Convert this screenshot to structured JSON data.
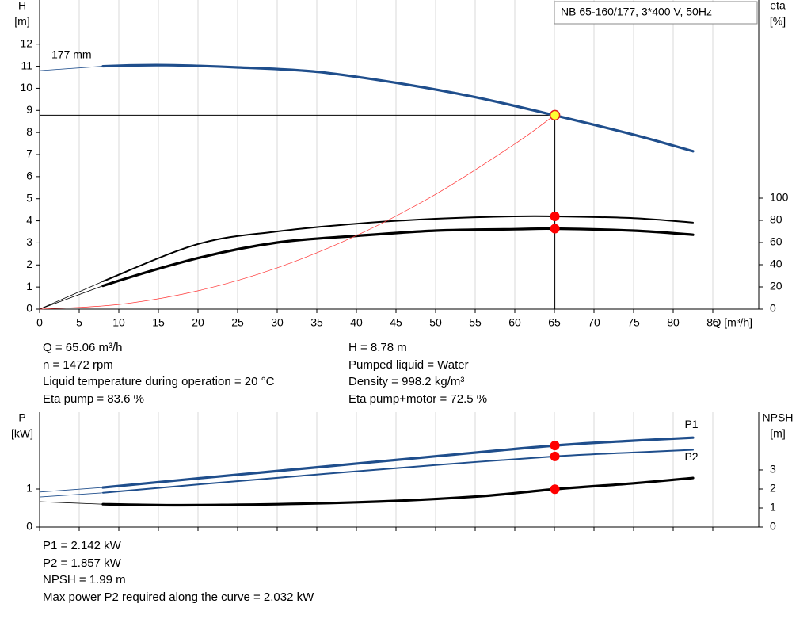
{
  "chart_data": [
    {
      "type": "line",
      "title": "NB 65-160/177, 3*400 V, 50Hz",
      "ylabel": "H",
      "yunit": "[m]",
      "y2label": "eta",
      "y2unit": "[%]",
      "xlabel": "Q [m³/h]",
      "annotation": "177 mm",
      "xlim": [
        0,
        90.8
      ],
      "xticks": [
        0,
        5,
        10,
        15,
        20,
        25,
        30,
        35,
        40,
        45,
        50,
        55,
        60,
        65,
        70,
        75,
        80,
        85
      ],
      "xtick_labels": true,
      "ylim": [
        0,
        14
      ],
      "yticks": [
        0,
        1,
        2,
        3,
        4,
        5,
        6,
        7,
        8,
        9,
        10,
        11,
        12
      ],
      "y2lim": [
        0,
        278.6
      ],
      "y2ticks": [
        0,
        20,
        40,
        60,
        80,
        100
      ],
      "grid": true,
      "series": [
        {
          "color": "#1f4e8c",
          "style": "thick",
          "x": [
            0,
            8,
            16,
            25,
            35,
            45,
            55,
            65,
            75,
            82.5
          ],
          "values": [
            10.8,
            11.0,
            11.05,
            10.95,
            10.75,
            10.25,
            9.6,
            8.78,
            7.9,
            7.15
          ]
        },
        {
          "color": "#000000",
          "style": "medium",
          "axis": "y2",
          "x": [
            0,
            8,
            20,
            30,
            40,
            50,
            60,
            65,
            75,
            82.5
          ],
          "values": [
            0,
            25,
            58.6,
            70,
            77,
            81.4,
            83.6,
            83.6,
            82,
            78
          ]
        },
        {
          "color": "#000000",
          "style": "thick",
          "axis": "y2",
          "x": [
            0,
            8,
            20,
            30,
            40,
            50,
            60,
            65,
            75,
            82.5
          ],
          "values": [
            0,
            21,
            46,
            60,
            66,
            70.7,
            72,
            72.5,
            70.7,
            67
          ]
        },
        {
          "color": "#ff3333",
          "style": "hair",
          "x": [
            0,
            10,
            20,
            30,
            40,
            50,
            60,
            65
          ],
          "values": [
            0,
            0.21,
            0.83,
            1.87,
            3.33,
            5.2,
            7.48,
            8.78
          ]
        }
      ],
      "points": [
        {
          "x": 65.06,
          "y": 8.78,
          "color": "#ffff33",
          "crosshair": true
        },
        {
          "x": 65.06,
          "y": 83.6,
          "axis": "y2",
          "color": "#ff0000"
        },
        {
          "x": 65.06,
          "y": 72.5,
          "axis": "y2",
          "color": "#ff0000"
        }
      ]
    },
    {
      "type": "line",
      "ylabel": "P",
      "yunit": "[kW]",
      "y2label": "NPSH",
      "y2unit": "[m]",
      "xlim": [
        0,
        90.8
      ],
      "xticks": [
        0,
        5,
        10,
        15,
        20,
        25,
        30,
        35,
        40,
        45,
        50,
        55,
        60,
        65,
        70,
        75,
        80,
        85
      ],
      "xtick_labels": false,
      "ylim": [
        0,
        3.02
      ],
      "yticks": [
        0,
        1
      ],
      "y2lim": [
        0,
        6.04
      ],
      "y2ticks": [
        0,
        1,
        2,
        3
      ],
      "grid": true,
      "series": [
        {
          "name": "P1",
          "color": "#1f4e8c",
          "style": "thick",
          "label_pos": "above",
          "x": [
            0,
            8,
            20,
            35,
            50,
            65,
            75,
            82.5
          ],
          "values": [
            0.92,
            1.04,
            1.28,
            1.57,
            1.86,
            2.142,
            2.27,
            2.35
          ]
        },
        {
          "name": "P2",
          "color": "#1f4e8c",
          "style": "medium",
          "label_pos": "below",
          "x": [
            0,
            8,
            20,
            35,
            50,
            65,
            75,
            82.5
          ],
          "values": [
            0.79,
            0.9,
            1.12,
            1.38,
            1.63,
            1.857,
            1.96,
            2.03
          ]
        },
        {
          "color": "#000000",
          "style": "thick",
          "axis": "y2",
          "x": [
            0,
            8,
            20,
            40,
            55,
            65,
            75,
            82.5
          ],
          "values": [
            1.33,
            1.2,
            1.15,
            1.3,
            1.6,
            1.99,
            2.3,
            2.58
          ]
        }
      ],
      "points": [
        {
          "x": 65.06,
          "y": 2.142,
          "color": "#ff0000"
        },
        {
          "x": 65.06,
          "y": 1.857,
          "color": "#ff0000"
        },
        {
          "x": 65.06,
          "y": 1.99,
          "axis": "y2",
          "color": "#ff0000"
        }
      ]
    }
  ],
  "info_top": {
    "left": [
      "Q = 65.06 m³/h",
      "n = 1472 rpm",
      "Liquid temperature during operation = 20 °C",
      "Eta pump = 83.6 %"
    ],
    "right": [
      "H = 8.78 m",
      "Pumped liquid = Water",
      "Density = 998.2 kg/m³",
      "Eta pump+motor = 72.5 %"
    ]
  },
  "info_bottom": [
    "P1 = 2.142 kW",
    "P2 = 1.857 kW",
    "NPSH = 1.99 m",
    "Max power P2 required along the curve = 2.032 kW"
  ]
}
